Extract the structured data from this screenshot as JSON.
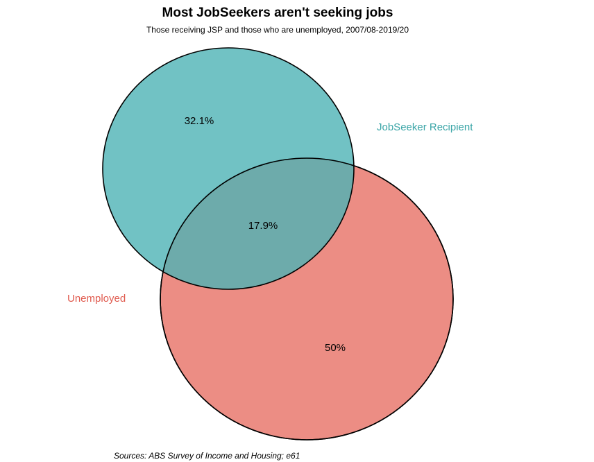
{
  "title": "Most JobSeekers aren't seeking jobs",
  "subtitle": "Those receiving JSP and those who are unemployed, 2007/08-2019/20",
  "sets": [
    {
      "name": "JobSeeker Recipient",
      "color": "#4DB3B5"
    },
    {
      "name": "Unemployed",
      "color": "#E5675B"
    }
  ],
  "regions": {
    "jobseeker_only": "32.1%",
    "overlap": "17.9%",
    "unemployed_only": "50%"
  },
  "caption": "Sources: ABS Survey of Income and Housing; e61"
}
